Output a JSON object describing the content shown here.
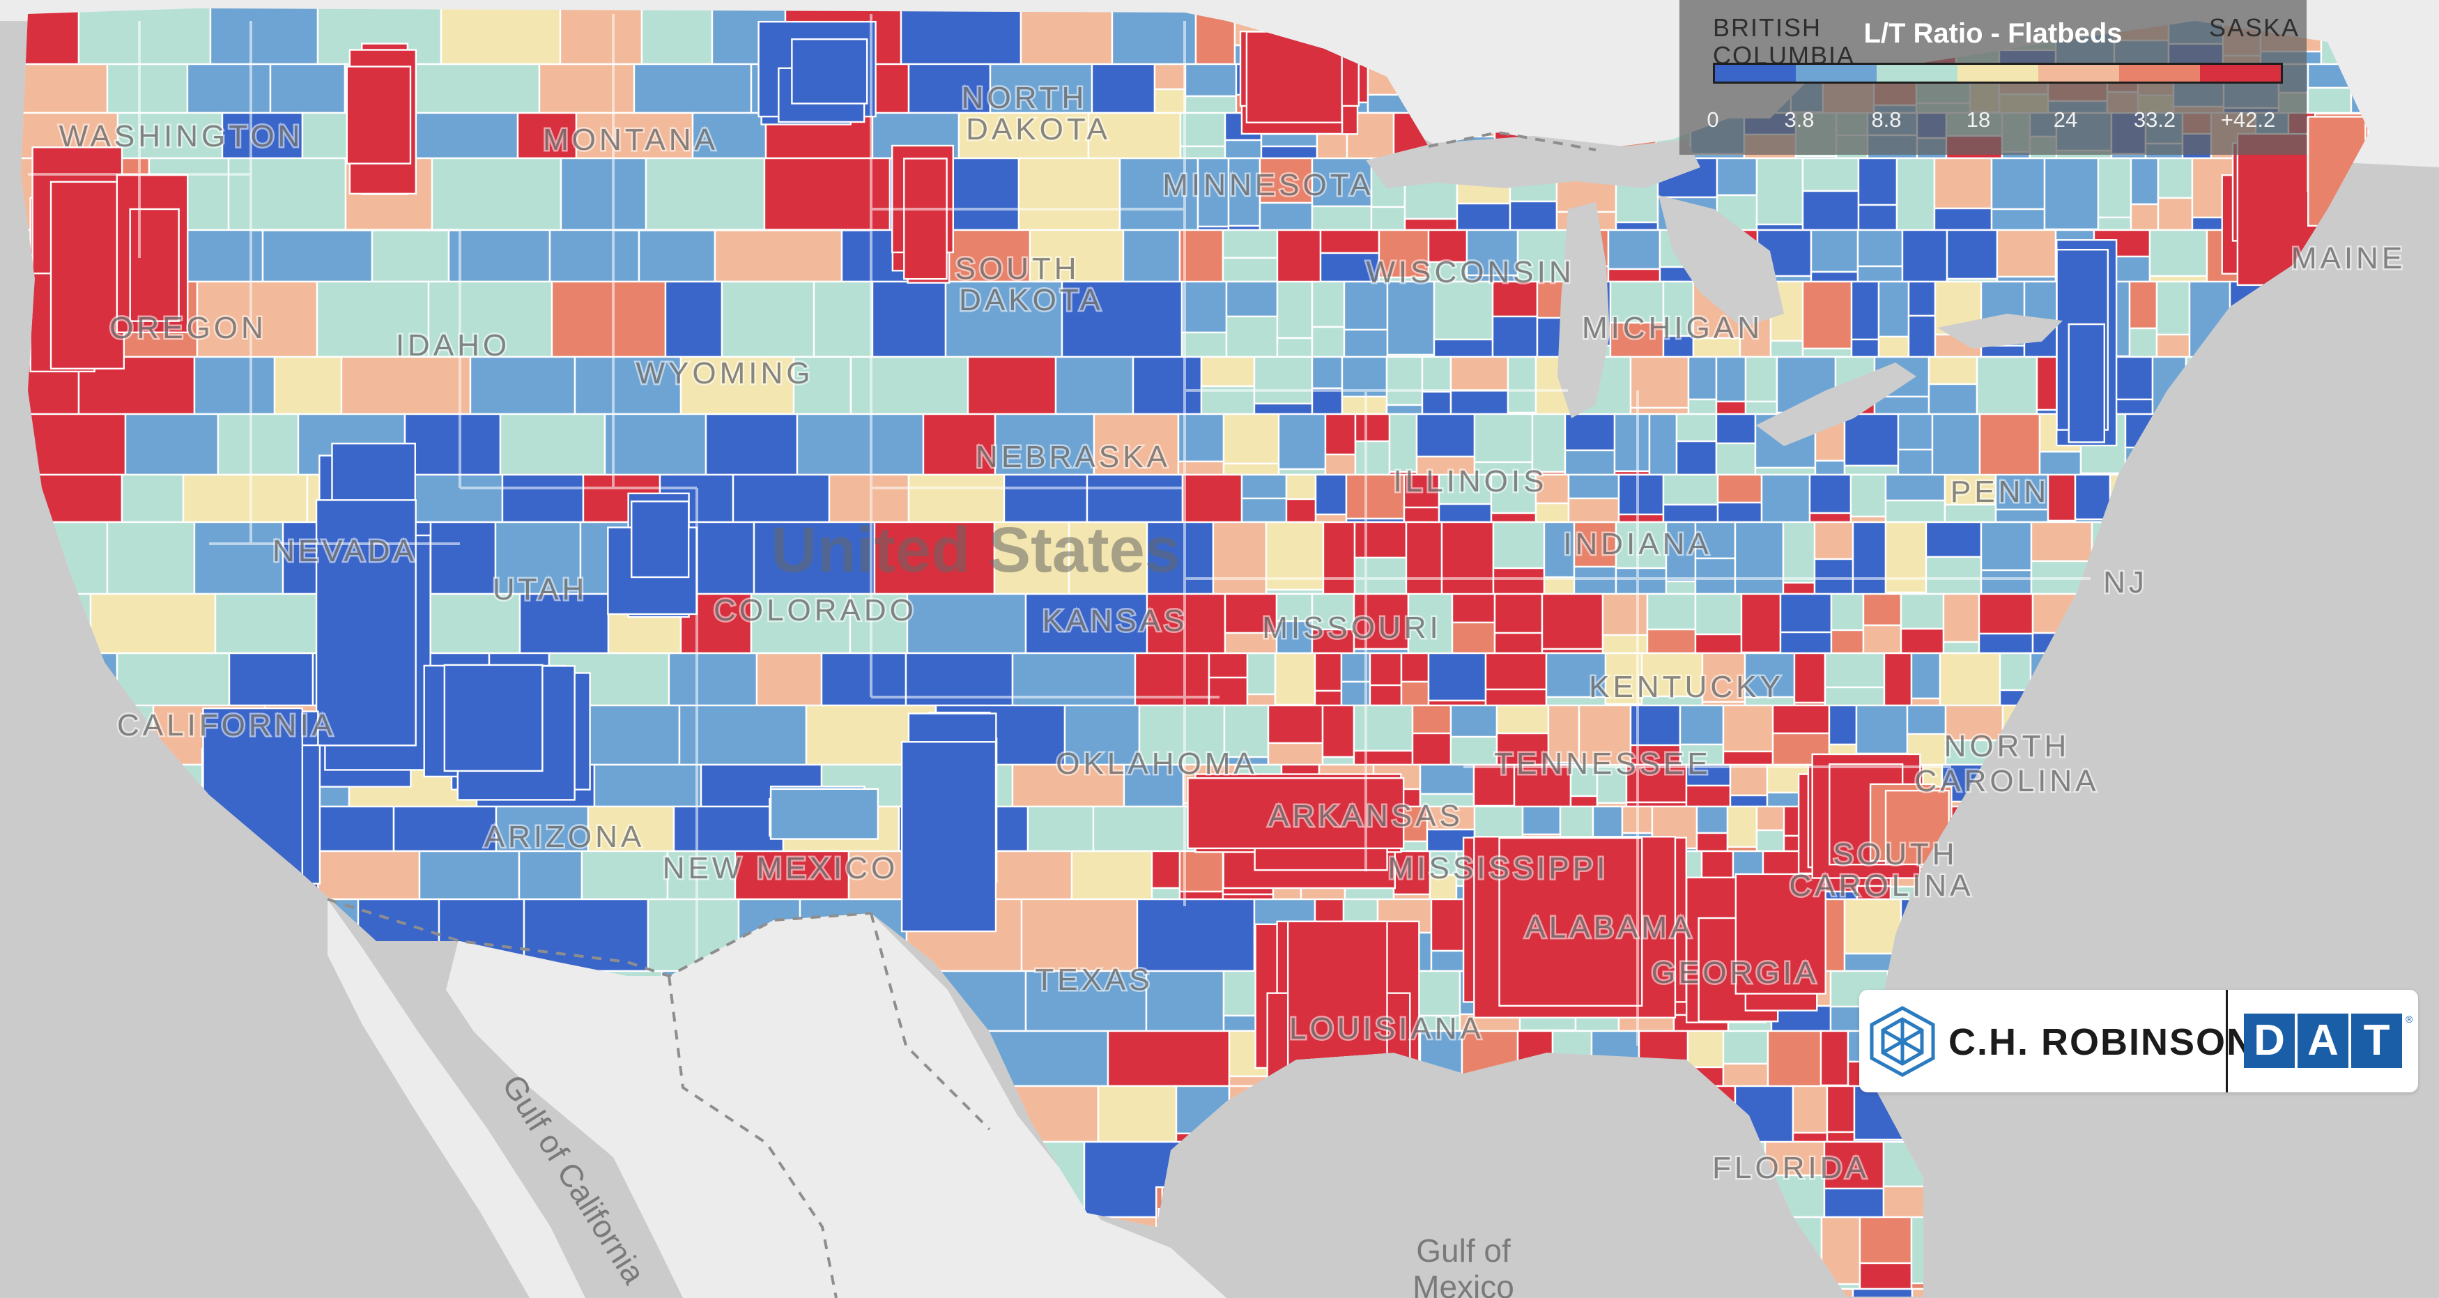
{
  "legend": {
    "title": "L/T Ratio - Flatbeds",
    "ticks": [
      "0",
      "3.8",
      "8.8",
      "18",
      "24",
      "33.2",
      "+42.2"
    ],
    "colors": [
      "#3b66c9",
      "#6ea4d4",
      "#b6e0d4",
      "#f3e6b0",
      "#f2b99a",
      "#e8826a",
      "#d8303e"
    ],
    "province_labels": {
      "left_line1": "BRITISH",
      "left_line2": "COLUMBIA",
      "right": "SASKA"
    }
  },
  "map": {
    "country_label": "United States",
    "states": {
      "washington": "WASHINGTON",
      "oregon": "OREGON",
      "california": "CALIFORNIA",
      "nevada": "NEVADA",
      "idaho": "IDAHO",
      "montana": "MONTANA",
      "wyoming": "WYOMING",
      "utah": "UTAH",
      "arizona": "ARIZONA",
      "colorado": "COLORADO",
      "new_mexico": "NEW MEXICO",
      "north_dakota_1": "NORTH",
      "north_dakota_2": "DAKOTA",
      "south_dakota_1": "SOUTH",
      "south_dakota_2": "DAKOTA",
      "nebraska": "NEBRASKA",
      "kansas": "KANSAS",
      "oklahoma": "OKLAHOMA",
      "texas": "TEXAS",
      "minnesota": "MINNESOTA",
      "wisconsin": "WISCONSIN",
      "michigan": "MICHIGAN",
      "illinois": "ILLINOIS",
      "indiana": "INDIANA",
      "missouri": "MISSOURI",
      "arkansas": "ARKANSAS",
      "louisiana": "LOUISIANA",
      "mississippi": "MISSISSIPPI",
      "alabama": "ALABAMA",
      "tennessee": "TENNESSEE",
      "kentucky": "KENTUCKY",
      "georgia": "GEORGIA",
      "florida": "FLORIDA",
      "south_carolina_1": "SOUTH",
      "south_carolina_2": "CAROLINA",
      "north_carolina_1": "NORTH",
      "north_carolina_2": "CAROLINA",
      "pennsylvania": "PENN",
      "new_jersey": "NJ",
      "maine": "MAINE"
    },
    "water": {
      "gulf_of_mexico_1": "Gulf of",
      "gulf_of_mexico_2": "Mexico",
      "gulf_of_california": "Gulf of California"
    }
  },
  "brand": {
    "chr_name": "C.H. ROBINSON",
    "dat_letters": [
      "D",
      "A",
      "T"
    ],
    "dat_mark": "®"
  }
}
